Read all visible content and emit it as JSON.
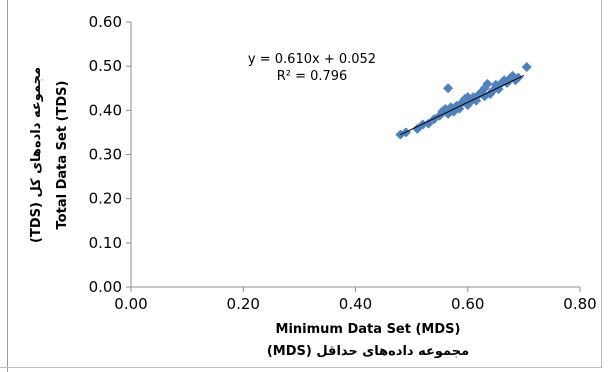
{
  "chart_data": {
    "type": "scatter",
    "xlabel": "Minimum Data Set (MDS)",
    "xlabel_fa": "مجموعه داده‌های حداقل (MDS)",
    "ylabel": "Total Data Set (TDS)",
    "ylabel_fa": "مجموعه داده‌های کل (TDS)",
    "xlim": [
      0,
      0.8
    ],
    "ylim": [
      0,
      0.6
    ],
    "x_ticks": [
      "0.00",
      "0.20",
      "0.40",
      "0.60",
      "0.80"
    ],
    "y_ticks": [
      "0.00",
      "0.10",
      "0.20",
      "0.30",
      "0.40",
      "0.50",
      "0.60"
    ],
    "grid": false,
    "marker_color": "#4f81bd",
    "trendline": {
      "slope": 0.61,
      "intercept": 0.052,
      "x_range": [
        0.48,
        0.7
      ],
      "color": "#000000"
    },
    "annotations": {
      "equation": "y = 0.610x + 0.052",
      "r_squared": "R² = 0.796"
    },
    "series": [
      {
        "points": [
          [
            0.48,
            0.345
          ],
          [
            0.49,
            0.35
          ],
          [
            0.51,
            0.358
          ],
          [
            0.52,
            0.368
          ],
          [
            0.53,
            0.37
          ],
          [
            0.54,
            0.38
          ],
          [
            0.55,
            0.388
          ],
          [
            0.555,
            0.398
          ],
          [
            0.56,
            0.403
          ],
          [
            0.565,
            0.45
          ],
          [
            0.565,
            0.392
          ],
          [
            0.57,
            0.407
          ],
          [
            0.575,
            0.397
          ],
          [
            0.58,
            0.41
          ],
          [
            0.585,
            0.404
          ],
          [
            0.59,
            0.418
          ],
          [
            0.595,
            0.426
          ],
          [
            0.6,
            0.43
          ],
          [
            0.6,
            0.412
          ],
          [
            0.605,
            0.42
          ],
          [
            0.61,
            0.43
          ],
          [
            0.615,
            0.422
          ],
          [
            0.62,
            0.436
          ],
          [
            0.625,
            0.442
          ],
          [
            0.63,
            0.45
          ],
          [
            0.63,
            0.432
          ],
          [
            0.635,
            0.46
          ],
          [
            0.64,
            0.437
          ],
          [
            0.645,
            0.445
          ],
          [
            0.65,
            0.458
          ],
          [
            0.655,
            0.448
          ],
          [
            0.66,
            0.462
          ],
          [
            0.665,
            0.468
          ],
          [
            0.67,
            0.462
          ],
          [
            0.675,
            0.472
          ],
          [
            0.68,
            0.478
          ],
          [
            0.685,
            0.468
          ],
          [
            0.69,
            0.474
          ],
          [
            0.705,
            0.498
          ]
        ]
      }
    ]
  }
}
